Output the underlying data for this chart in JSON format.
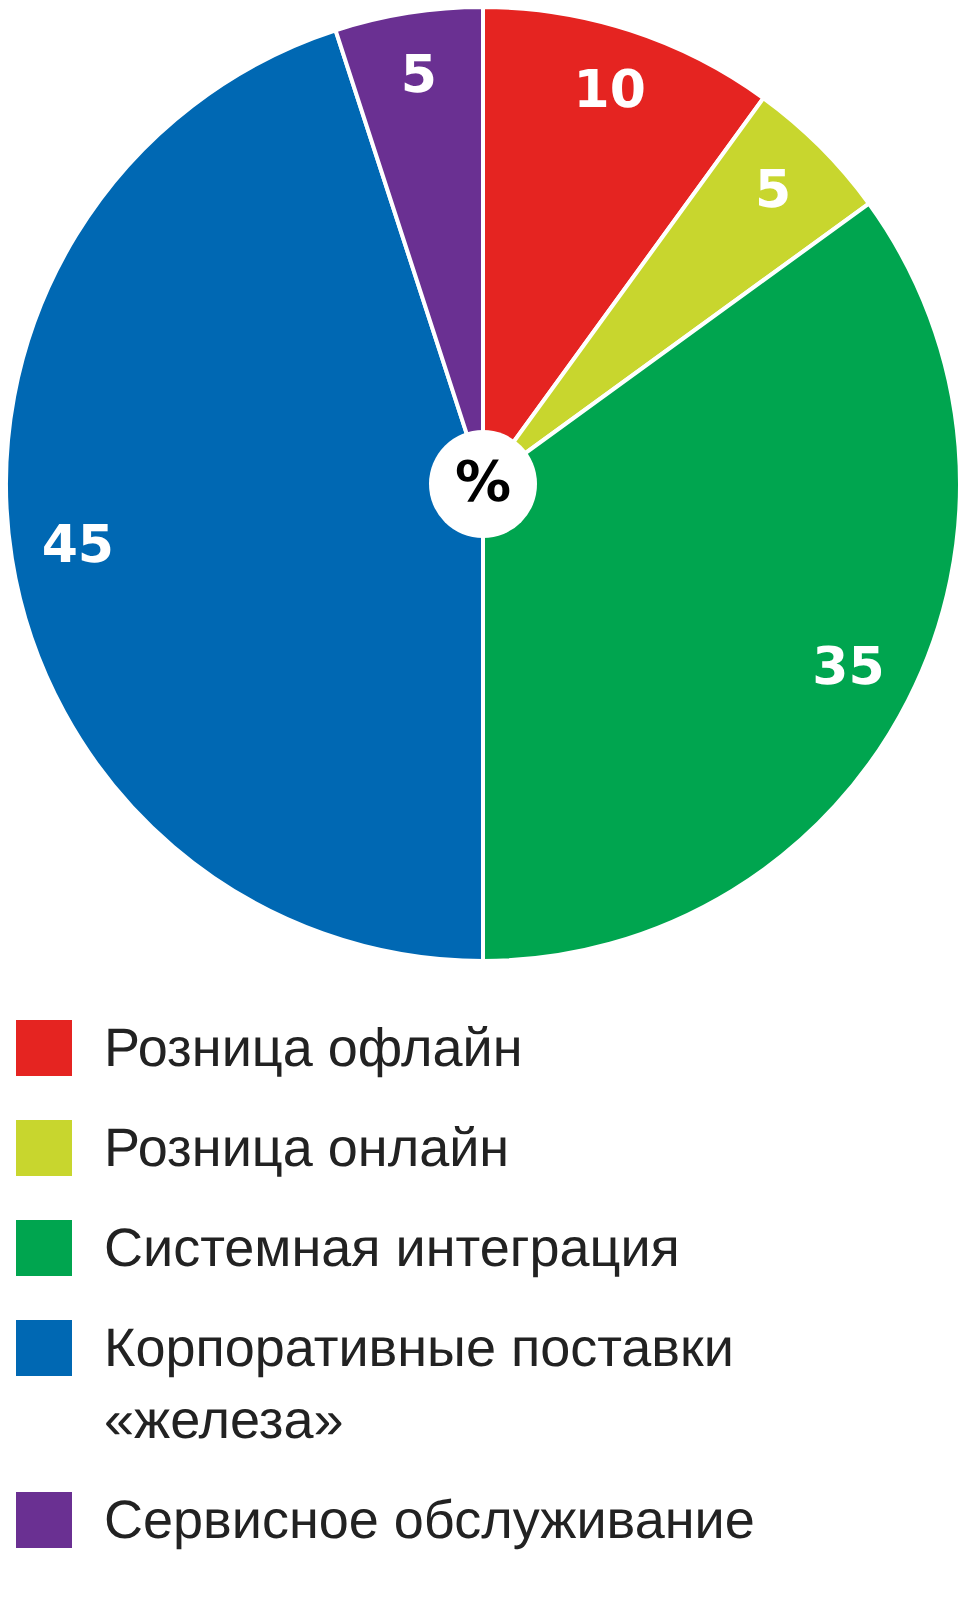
{
  "chart_data": {
    "type": "pie",
    "categories": [
      "Розница офлайн",
      "Розница онлайн",
      "Системная интеграция",
      "Корпоративные поставки «железа»",
      "Сервисное обслуживание"
    ],
    "values": [
      10,
      5,
      35,
      45,
      5
    ],
    "colors": [
      "#e52421",
      "#c8d62e",
      "#00a54f",
      "#0068b3",
      "#6a3092"
    ],
    "data_labels": true,
    "annotations": [
      "%"
    ],
    "legend": "bottom"
  }
}
